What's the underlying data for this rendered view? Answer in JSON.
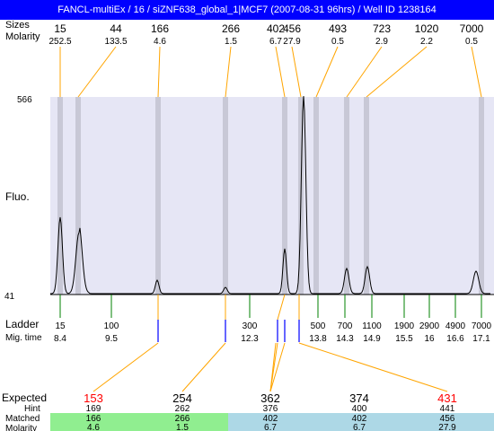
{
  "title": "FANCL-multiEx / 16 / siZNF638_global_1|MCF7 (2007-08-31 96hrs) / Well ID 1238164",
  "header": {
    "sizes_label": "Sizes",
    "molarity_label": "Molarity"
  },
  "axis": {
    "y_top": "566",
    "y_bottom": "41",
    "y_label": "Fluo."
  },
  "peaks": [
    {
      "size": "15",
      "molarity": "252.5"
    },
    {
      "size": "44",
      "molarity": "133.5"
    },
    {
      "size": "166",
      "molarity": "4.6"
    },
    {
      "size": "266",
      "molarity": "1.5"
    },
    {
      "size": "402",
      "molarity": "6.7"
    },
    {
      "size": "456",
      "molarity": "27.9"
    },
    {
      "size": "493",
      "molarity": "0.5"
    },
    {
      "size": "723",
      "molarity": "2.9"
    },
    {
      "size": "1020",
      "molarity": "2.2"
    },
    {
      "size": "7000",
      "molarity": "0.5"
    }
  ],
  "ladder": {
    "label": "Ladder",
    "time_label": "Mig. time",
    "marks": [
      {
        "size": "15",
        "time": "8.4"
      },
      {
        "size": "100",
        "time": "9.5"
      },
      {
        "size": "300",
        "time": "12.3"
      },
      {
        "size": "500",
        "time": "13.8"
      },
      {
        "size": "700",
        "time": "14.3"
      },
      {
        "size": "1100",
        "time": "14.9"
      },
      {
        "size": "1900",
        "time": "15.5"
      },
      {
        "size": "2900",
        "time": "16"
      },
      {
        "size": "4900",
        "time": "16.6"
      },
      {
        "size": "7000",
        "time": "17.1"
      }
    ]
  },
  "table": {
    "expected_label": "Expected",
    "hint_label": "Hint",
    "matched_label": "Matched",
    "molarity_label": "Molarity",
    "columns": [
      {
        "expected": "153",
        "hint": "169",
        "matched": "166",
        "molarity": "4.6",
        "expected_color": "#ff0000",
        "band": "#90ee90"
      },
      {
        "expected": "254",
        "hint": "262",
        "matched": "266",
        "molarity": "1.5",
        "expected_color": "#000000",
        "band": "#90ee90"
      },
      {
        "expected": "362",
        "hint": "376",
        "matched": "402",
        "molarity": "6.7",
        "expected_color": "#000000",
        "band": "#add8e6"
      },
      {
        "expected": "374",
        "hint": "400",
        "matched": "402",
        "molarity": "6.7",
        "expected_color": "#000000",
        "band": "#add8e6"
      },
      {
        "expected": "431",
        "hint": "441",
        "matched": "456",
        "molarity": "27.9",
        "expected_color": "#ff0000",
        "band": "#add8e6"
      }
    ]
  },
  "colors": {
    "title_bg": "#0000ff",
    "plot_bg": "#e6e6f5",
    "peak_band": "#c8c8d6",
    "guide_line": "#ffa500",
    "ladder_tick": "#008000",
    "matched_tick": "#0000ff",
    "green_band": "#90ee90",
    "blue_band": "#add8e6"
  }
}
